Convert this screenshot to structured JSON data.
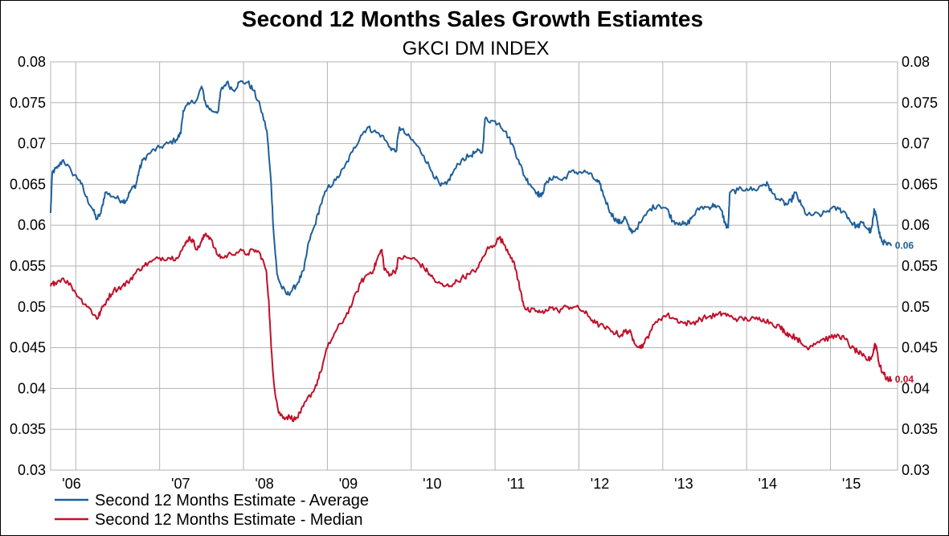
{
  "chart_data": {
    "type": "line",
    "title": "Second 12 Months Sales Growth Estiamtes",
    "subtitle": "GKCI DM INDEX",
    "ylim": [
      0.03,
      0.08
    ],
    "y_ticks": [
      "0.03",
      "0.035",
      "0.04",
      "0.045",
      "0.05",
      "0.055",
      "0.06",
      "0.065",
      "0.07",
      "0.075",
      "0.08"
    ],
    "x_range": [
      2005.7,
      2015.8
    ],
    "x_tick_labels": [
      "'06",
      "'07",
      "'08",
      "'09",
      "'10",
      "'11",
      "'12",
      "'13",
      "'14",
      "'15"
    ],
    "grid": true,
    "legend_position": "bottom-left",
    "series": [
      {
        "name": "Second 12 Months Estimate - Average",
        "color": "#1f5f99",
        "end_label": "0.06",
        "points": [
          [
            2005.7,
            0.0615
          ],
          [
            2005.72,
            0.0665
          ],
          [
            2005.78,
            0.067
          ],
          [
            2005.85,
            0.068
          ],
          [
            2005.95,
            0.0665
          ],
          [
            2006.05,
            0.0655
          ],
          [
            2006.12,
            0.0635
          ],
          [
            2006.2,
            0.062
          ],
          [
            2006.25,
            0.0607
          ],
          [
            2006.3,
            0.0615
          ],
          [
            2006.35,
            0.064
          ],
          [
            2006.45,
            0.0635
          ],
          [
            2006.55,
            0.063
          ],
          [
            2006.6,
            0.063
          ],
          [
            2006.65,
            0.0642
          ],
          [
            2006.72,
            0.065
          ],
          [
            2006.75,
            0.0665
          ],
          [
            2006.8,
            0.068
          ],
          [
            2006.9,
            0.069
          ],
          [
            2007.0,
            0.0695
          ],
          [
            2007.1,
            0.07
          ],
          [
            2007.2,
            0.0705
          ],
          [
            2007.25,
            0.0712
          ],
          [
            2007.28,
            0.074
          ],
          [
            2007.35,
            0.0748
          ],
          [
            2007.45,
            0.0755
          ],
          [
            2007.5,
            0.077
          ],
          [
            2007.55,
            0.0748
          ],
          [
            2007.62,
            0.074
          ],
          [
            2007.7,
            0.074
          ],
          [
            2007.73,
            0.0765
          ],
          [
            2007.8,
            0.0775
          ],
          [
            2007.88,
            0.0765
          ],
          [
            2007.95,
            0.0775
          ],
          [
            2008.05,
            0.0775
          ],
          [
            2008.12,
            0.0765
          ],
          [
            2008.2,
            0.0745
          ],
          [
            2008.28,
            0.0715
          ],
          [
            2008.33,
            0.065
          ],
          [
            2008.36,
            0.059
          ],
          [
            2008.4,
            0.054
          ],
          [
            2008.45,
            0.0525
          ],
          [
            2008.52,
            0.0515
          ],
          [
            2008.58,
            0.052
          ],
          [
            2008.65,
            0.053
          ],
          [
            2008.72,
            0.0545
          ],
          [
            2008.78,
            0.058
          ],
          [
            2008.85,
            0.06
          ],
          [
            2008.92,
            0.0625
          ],
          [
            2009.0,
            0.0645
          ],
          [
            2009.1,
            0.0655
          ],
          [
            2009.2,
            0.067
          ],
          [
            2009.3,
            0.069
          ],
          [
            2009.4,
            0.071
          ],
          [
            2009.48,
            0.072
          ],
          [
            2009.55,
            0.0715
          ],
          [
            2009.65,
            0.071
          ],
          [
            2009.75,
            0.0695
          ],
          [
            2009.82,
            0.069
          ],
          [
            2009.86,
            0.072
          ],
          [
            2009.95,
            0.071
          ],
          [
            2010.05,
            0.07
          ],
          [
            2010.15,
            0.0685
          ],
          [
            2010.25,
            0.0665
          ],
          [
            2010.35,
            0.0648
          ],
          [
            2010.42,
            0.065
          ],
          [
            2010.5,
            0.0665
          ],
          [
            2010.6,
            0.068
          ],
          [
            2010.7,
            0.0685
          ],
          [
            2010.78,
            0.069
          ],
          [
            2010.85,
            0.069
          ],
          [
            2010.88,
            0.073
          ],
          [
            2010.95,
            0.0728
          ],
          [
            2011.05,
            0.0725
          ],
          [
            2011.12,
            0.0715
          ],
          [
            2011.2,
            0.07
          ],
          [
            2011.28,
            0.068
          ],
          [
            2011.35,
            0.066
          ],
          [
            2011.42,
            0.065
          ],
          [
            2011.5,
            0.064
          ],
          [
            2011.55,
            0.0635
          ],
          [
            2011.6,
            0.065
          ],
          [
            2011.7,
            0.066
          ],
          [
            2011.8,
            0.0655
          ],
          [
            2011.9,
            0.0665
          ],
          [
            2012.0,
            0.0665
          ],
          [
            2012.1,
            0.0665
          ],
          [
            2012.2,
            0.0655
          ],
          [
            2012.25,
            0.065
          ],
          [
            2012.3,
            0.0635
          ],
          [
            2012.38,
            0.0615
          ],
          [
            2012.45,
            0.0605
          ],
          [
            2012.5,
            0.0603
          ],
          [
            2012.55,
            0.061
          ],
          [
            2012.6,
            0.0595
          ],
          [
            2012.65,
            0.0592
          ],
          [
            2012.75,
            0.0605
          ],
          [
            2012.85,
            0.062
          ],
          [
            2012.95,
            0.0625
          ],
          [
            2013.05,
            0.062
          ],
          [
            2013.12,
            0.0605
          ],
          [
            2013.2,
            0.0603
          ],
          [
            2013.28,
            0.06
          ],
          [
            2013.35,
            0.061
          ],
          [
            2013.45,
            0.0622
          ],
          [
            2013.55,
            0.0622
          ],
          [
            2013.62,
            0.0625
          ],
          [
            2013.7,
            0.0618
          ],
          [
            2013.75,
            0.06
          ],
          [
            2013.78,
            0.0597
          ],
          [
            2013.8,
            0.064
          ],
          [
            2013.9,
            0.0643
          ],
          [
            2014.0,
            0.0645
          ],
          [
            2014.1,
            0.0643
          ],
          [
            2014.2,
            0.065
          ],
          [
            2014.25,
            0.065
          ],
          [
            2014.3,
            0.064
          ],
          [
            2014.4,
            0.063
          ],
          [
            2014.48,
            0.0625
          ],
          [
            2014.53,
            0.063
          ],
          [
            2014.58,
            0.064
          ],
          [
            2014.65,
            0.0625
          ],
          [
            2014.72,
            0.0612
          ],
          [
            2014.8,
            0.0613
          ],
          [
            2014.9,
            0.0613
          ],
          [
            2015.0,
            0.062
          ],
          [
            2015.1,
            0.062
          ],
          [
            2015.18,
            0.0615
          ],
          [
            2015.25,
            0.0603
          ],
          [
            2015.32,
            0.0598
          ],
          [
            2015.38,
            0.0603
          ],
          [
            2015.45,
            0.0595
          ],
          [
            2015.48,
            0.0592
          ],
          [
            2015.5,
            0.06
          ],
          [
            2015.52,
            0.062
          ],
          [
            2015.55,
            0.061
          ],
          [
            2015.58,
            0.059
          ],
          [
            2015.62,
            0.058
          ],
          [
            2015.68,
            0.0576
          ],
          [
            2015.73,
            0.0575
          ]
        ]
      },
      {
        "name": "Second 12 Months Estimate - Median",
        "color": "#c0102a",
        "end_label": "0.04",
        "points": [
          [
            2005.7,
            0.0525
          ],
          [
            2005.75,
            0.053
          ],
          [
            2005.85,
            0.0535
          ],
          [
            2005.95,
            0.0525
          ],
          [
            2006.05,
            0.051
          ],
          [
            2006.15,
            0.05
          ],
          [
            2006.22,
            0.049
          ],
          [
            2006.26,
            0.0486
          ],
          [
            2006.3,
            0.0495
          ],
          [
            2006.38,
            0.051
          ],
          [
            2006.45,
            0.052
          ],
          [
            2006.55,
            0.0525
          ],
          [
            2006.62,
            0.053
          ],
          [
            2006.7,
            0.054
          ],
          [
            2006.8,
            0.055
          ],
          [
            2006.9,
            0.0555
          ],
          [
            2007.0,
            0.056
          ],
          [
            2007.1,
            0.056
          ],
          [
            2007.2,
            0.056
          ],
          [
            2007.3,
            0.0575
          ],
          [
            2007.35,
            0.0585
          ],
          [
            2007.4,
            0.058
          ],
          [
            2007.45,
            0.057
          ],
          [
            2007.5,
            0.058
          ],
          [
            2007.55,
            0.059
          ],
          [
            2007.6,
            0.0585
          ],
          [
            2007.68,
            0.0565
          ],
          [
            2007.75,
            0.056
          ],
          [
            2007.85,
            0.0565
          ],
          [
            2007.95,
            0.0568
          ],
          [
            2008.05,
            0.0565
          ],
          [
            2008.12,
            0.057
          ],
          [
            2008.2,
            0.0565
          ],
          [
            2008.27,
            0.0545
          ],
          [
            2008.3,
            0.051
          ],
          [
            2008.33,
            0.045
          ],
          [
            2008.37,
            0.04
          ],
          [
            2008.42,
            0.037
          ],
          [
            2008.48,
            0.0365
          ],
          [
            2008.55,
            0.0365
          ],
          [
            2008.62,
            0.0362
          ],
          [
            2008.68,
            0.037
          ],
          [
            2008.75,
            0.0385
          ],
          [
            2008.85,
            0.04
          ],
          [
            2008.92,
            0.042
          ],
          [
            2009.0,
            0.045
          ],
          [
            2009.1,
            0.047
          ],
          [
            2009.2,
            0.0485
          ],
          [
            2009.3,
            0.0505
          ],
          [
            2009.4,
            0.053
          ],
          [
            2009.48,
            0.054
          ],
          [
            2009.55,
            0.0545
          ],
          [
            2009.6,
            0.056
          ],
          [
            2009.65,
            0.057
          ],
          [
            2009.68,
            0.0545
          ],
          [
            2009.75,
            0.054
          ],
          [
            2009.82,
            0.0545
          ],
          [
            2009.85,
            0.056
          ],
          [
            2009.95,
            0.056
          ],
          [
            2010.05,
            0.0558
          ],
          [
            2010.15,
            0.0548
          ],
          [
            2010.22,
            0.054
          ],
          [
            2010.3,
            0.053
          ],
          [
            2010.4,
            0.0525
          ],
          [
            2010.5,
            0.0528
          ],
          [
            2010.6,
            0.0535
          ],
          [
            2010.7,
            0.054
          ],
          [
            2010.8,
            0.0548
          ],
          [
            2010.9,
            0.057
          ],
          [
            2010.98,
            0.0575
          ],
          [
            2011.05,
            0.0585
          ],
          [
            2011.12,
            0.0575
          ],
          [
            2011.2,
            0.056
          ],
          [
            2011.25,
            0.0545
          ],
          [
            2011.3,
            0.052
          ],
          [
            2011.35,
            0.05
          ],
          [
            2011.4,
            0.0495
          ],
          [
            2011.5,
            0.0495
          ],
          [
            2011.58,
            0.0492
          ],
          [
            2011.65,
            0.05
          ],
          [
            2011.75,
            0.0495
          ],
          [
            2011.85,
            0.05
          ],
          [
            2011.95,
            0.05
          ],
          [
            2012.05,
            0.0495
          ],
          [
            2012.12,
            0.0488
          ],
          [
            2012.2,
            0.048
          ],
          [
            2012.3,
            0.0475
          ],
          [
            2012.4,
            0.047
          ],
          [
            2012.5,
            0.0465
          ],
          [
            2012.55,
            0.047
          ],
          [
            2012.6,
            0.047
          ],
          [
            2012.65,
            0.046
          ],
          [
            2012.72,
            0.045
          ],
          [
            2012.78,
            0.0455
          ],
          [
            2012.85,
            0.047
          ],
          [
            2012.95,
            0.0485
          ],
          [
            2013.05,
            0.049
          ],
          [
            2013.15,
            0.0485
          ],
          [
            2013.25,
            0.048
          ],
          [
            2013.35,
            0.048
          ],
          [
            2013.45,
            0.0485
          ],
          [
            2013.55,
            0.0488
          ],
          [
            2013.65,
            0.049
          ],
          [
            2013.72,
            0.0492
          ],
          [
            2013.8,
            0.0488
          ],
          [
            2013.9,
            0.0485
          ],
          [
            2014.0,
            0.0485
          ],
          [
            2014.1,
            0.0485
          ],
          [
            2014.2,
            0.0485
          ],
          [
            2014.3,
            0.048
          ],
          [
            2014.4,
            0.0475
          ],
          [
            2014.45,
            0.047
          ],
          [
            2014.52,
            0.0465
          ],
          [
            2014.6,
            0.0462
          ],
          [
            2014.65,
            0.0455
          ],
          [
            2014.72,
            0.045
          ],
          [
            2014.8,
            0.0455
          ],
          [
            2014.9,
            0.046
          ],
          [
            2015.0,
            0.0462
          ],
          [
            2015.1,
            0.0465
          ],
          [
            2015.18,
            0.046
          ],
          [
            2015.25,
            0.045
          ],
          [
            2015.32,
            0.0445
          ],
          [
            2015.38,
            0.044
          ],
          [
            2015.45,
            0.0435
          ],
          [
            2015.5,
            0.044
          ],
          [
            2015.53,
            0.0455
          ],
          [
            2015.55,
            0.045
          ],
          [
            2015.58,
            0.043
          ],
          [
            2015.62,
            0.042
          ],
          [
            2015.67,
            0.0412
          ],
          [
            2015.73,
            0.0411
          ]
        ]
      }
    ]
  }
}
